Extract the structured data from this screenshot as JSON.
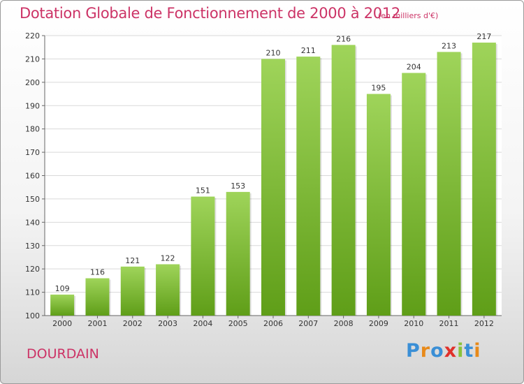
{
  "title": "Dotation Globale de Fonctionnement de 2000 à 2012",
  "unit_note": "(en milliers d'€)",
  "commune": "DOURDAIN",
  "logo": {
    "text": "Proxiti",
    "letters": [
      {
        "char": "P",
        "color": "#3a8fd6"
      },
      {
        "char": "r",
        "color": "#e88a1a"
      },
      {
        "char": "o",
        "color": "#3a8fd6"
      },
      {
        "char": "x",
        "color": "#e0302a"
      },
      {
        "char": "i",
        "color": "#8ac23a"
      },
      {
        "char": "t",
        "color": "#3a8fd6"
      },
      {
        "char": "i",
        "color": "#e88a1a"
      }
    ]
  },
  "colors": {
    "title": "#cc3366",
    "bar_top": "#9fd45a",
    "bar_bottom": "#5f9e18",
    "grid": "#d9d9d9"
  },
  "chart_data": {
    "type": "bar",
    "categories": [
      "2000",
      "2001",
      "2002",
      "2003",
      "2004",
      "2005",
      "2006",
      "2007",
      "2008",
      "2009",
      "2010",
      "2011",
      "2012"
    ],
    "values": [
      109,
      116,
      121,
      122,
      151,
      153,
      210,
      211,
      216,
      195,
      204,
      213,
      217
    ],
    "ylim": [
      100,
      220
    ],
    "yticks": [
      100,
      110,
      120,
      130,
      140,
      150,
      160,
      170,
      180,
      190,
      200,
      210,
      220
    ],
    "grid": true,
    "data_labels": true
  }
}
